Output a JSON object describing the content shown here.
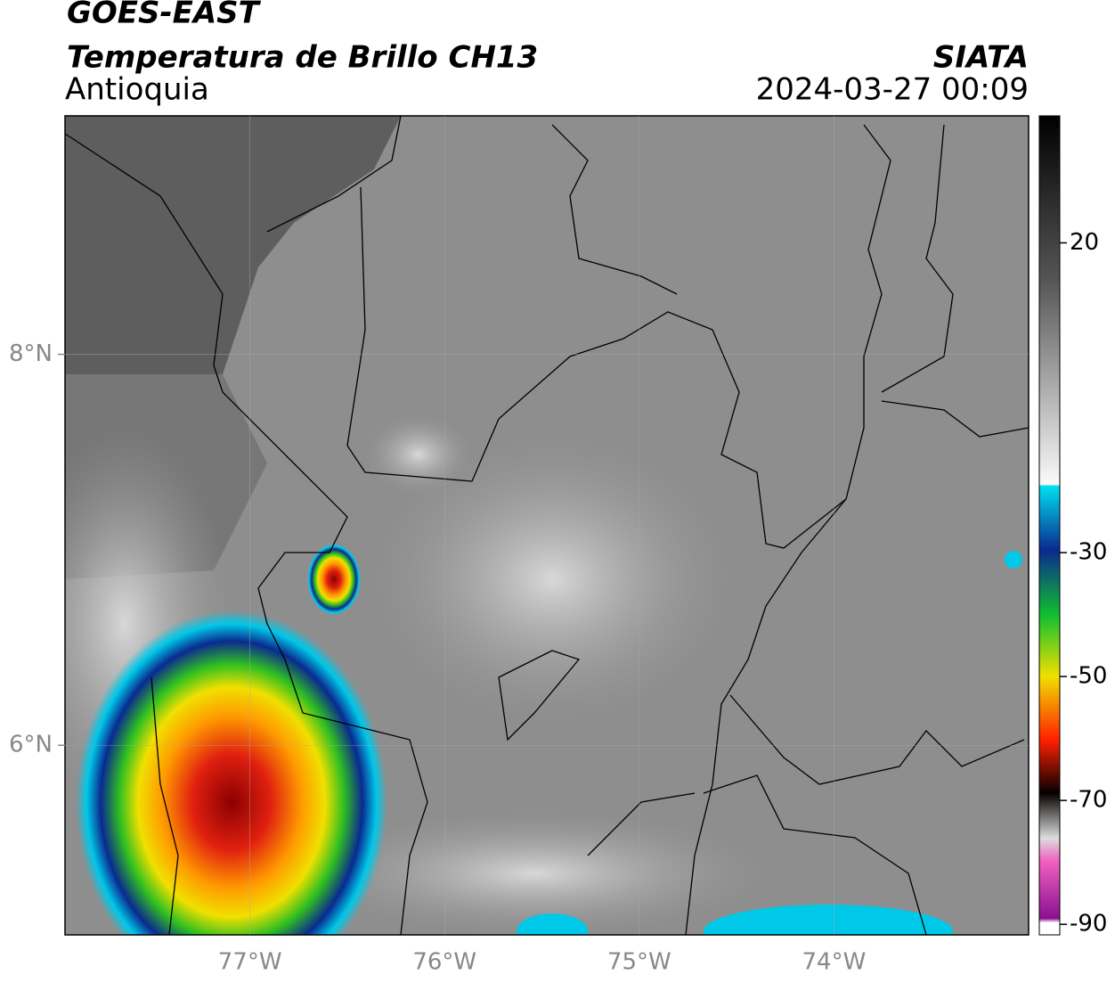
{
  "header": {
    "satellite": "GOES-EAST",
    "product": "Temperatura de Brillo CH13",
    "region": "Antioquia",
    "source": "SIATA",
    "timestamp": "2024-03-27 00:09"
  },
  "map": {
    "xlim": [
      -77.95,
      -73.0
    ],
    "ylim": [
      5.03,
      9.22
    ],
    "xticks": [
      {
        "value": -77,
        "label": "77°W"
      },
      {
        "value": -76,
        "label": "76°W"
      },
      {
        "value": -75,
        "label": "75°W"
      },
      {
        "value": -74,
        "label": "74°W"
      }
    ],
    "yticks": [
      {
        "value": 8,
        "label": "8°N"
      },
      {
        "value": 6,
        "label": "6°N"
      }
    ]
  },
  "colorbar": {
    "lim": [
      -91.7,
      40.5
    ],
    "ticks": [
      20,
      -30,
      -50,
      -70,
      -90
    ]
  }
}
